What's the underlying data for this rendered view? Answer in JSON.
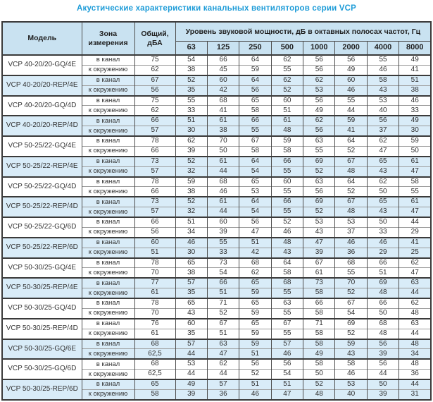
{
  "title": "Акустические характеристики канальных вентиляторов  серии VCP",
  "colors": {
    "accent_title": "#1e9cd8",
    "header_bg": "#c9e2f1",
    "stripe_bg": "#d9ecf8",
    "border_dark": "#3a3a3a"
  },
  "table": {
    "headers": {
      "model": "Модель",
      "zone": "Зона измерения",
      "total": "Общий, дБА",
      "level_span": "Уровень звуковой мощности, дБ в октавных полосах частот, Гц",
      "frequencies": [
        "63",
        "125",
        "250",
        "500",
        "1000",
        "2000",
        "4000",
        "8000"
      ]
    },
    "zone_labels": {
      "duct": "в канал",
      "ambient": "к окружению"
    },
    "models": [
      {
        "name": "VCP 40-20/20-GQ/4E",
        "highlight": false,
        "rows": [
          {
            "zone": "в канал",
            "total": "75",
            "values": [
              "54",
              "66",
              "64",
              "62",
              "56",
              "56",
              "55",
              "49"
            ]
          },
          {
            "zone": "к окружению",
            "total": "62",
            "values": [
              "38",
              "45",
              "59",
              "55",
              "56",
              "49",
              "46",
              "41"
            ]
          }
        ]
      },
      {
        "name": "VCP 40-20/20-REP/4E",
        "highlight": true,
        "rows": [
          {
            "zone": "в канал",
            "total": "67",
            "values": [
              "52",
              "60",
              "64",
              "62",
              "62",
              "60",
              "58",
              "51"
            ]
          },
          {
            "zone": "к окружению",
            "total": "56",
            "values": [
              "35",
              "42",
              "56",
              "52",
              "53",
              "46",
              "43",
              "38"
            ]
          }
        ]
      },
      {
        "name": "VCP 40-20/20-GQ/4D",
        "highlight": false,
        "rows": [
          {
            "zone": "в канал",
            "total": "75",
            "values": [
              "55",
              "68",
              "65",
              "60",
              "56",
              "55",
              "53",
              "46"
            ]
          },
          {
            "zone": "к окружению",
            "total": "62",
            "values": [
              "33",
              "41",
              "58",
              "51",
              "49",
              "44",
              "40",
              "33"
            ]
          }
        ]
      },
      {
        "name": "VCP 40-20/20-REP/4D",
        "highlight": true,
        "rows": [
          {
            "zone": "в канал",
            "total": "66",
            "values": [
              "51",
              "61",
              "66",
              "61",
              "62",
              "59",
              "56",
              "49"
            ]
          },
          {
            "zone": "к окружению",
            "total": "57",
            "values": [
              "30",
              "38",
              "55",
              "48",
              "56",
              "41",
              "37",
              "30"
            ]
          }
        ]
      },
      {
        "name": "VCP 50-25/22-GQ/4E",
        "highlight": false,
        "rows": [
          {
            "zone": "в канал",
            "total": "78",
            "values": [
              "62",
              "70",
              "67",
              "59",
              "63",
              "64",
              "62",
              "59"
            ]
          },
          {
            "zone": "к окружению",
            "total": "66",
            "values": [
              "39",
              "50",
              "58",
              "58",
              "55",
              "52",
              "47",
              "50"
            ]
          }
        ]
      },
      {
        "name": "VCP 50-25/22-REP/4E",
        "highlight": true,
        "rows": [
          {
            "zone": "в канал",
            "total": "73",
            "values": [
              "52",
              "61",
              "64",
              "66",
              "69",
              "67",
              "65",
              "61"
            ]
          },
          {
            "zone": "к окружению",
            "total": "57",
            "values": [
              "32",
              "44",
              "54",
              "55",
              "52",
              "48",
              "43",
              "47"
            ]
          }
        ]
      },
      {
        "name": "VCP 50-25/22-GQ/4D",
        "highlight": false,
        "rows": [
          {
            "zone": "в канал",
            "total": "78",
            "values": [
              "59",
              "68",
              "65",
              "60",
              "63",
              "64",
              "62",
              "58"
            ]
          },
          {
            "zone": "к окружению",
            "total": "66",
            "values": [
              "38",
              "46",
              "53",
              "55",
              "56",
              "52",
              "50",
              "55"
            ]
          }
        ]
      },
      {
        "name": "VCP 50-25/22-REP/4D",
        "highlight": true,
        "rows": [
          {
            "zone": "в канал",
            "total": "73",
            "values": [
              "52",
              "61",
              "64",
              "66",
              "69",
              "67",
              "65",
              "61"
            ]
          },
          {
            "zone": "к окружению",
            "total": "57",
            "values": [
              "32",
              "44",
              "54",
              "55",
              "52",
              "48",
              "43",
              "47"
            ]
          }
        ]
      },
      {
        "name": "VCP 50-25/22-GQ/6D",
        "highlight": false,
        "rows": [
          {
            "zone": "в канал",
            "total": "66",
            "values": [
              "51",
              "60",
              "56",
              "52",
              "53",
              "53",
              "50",
              "44"
            ]
          },
          {
            "zone": "к окружению",
            "total": "56",
            "values": [
              "34",
              "39",
              "47",
              "46",
              "43",
              "37",
              "33",
              "29"
            ]
          }
        ]
      },
      {
        "name": "VCP 50-25/22-REP/6D",
        "highlight": true,
        "rows": [
          {
            "zone": "в канал",
            "total": "60",
            "values": [
              "46",
              "55",
              "51",
              "48",
              "47",
              "46",
              "46",
              "41"
            ]
          },
          {
            "zone": "к окружению",
            "total": "51",
            "values": [
              "30",
              "33",
              "42",
              "43",
              "39",
              "36",
              "29",
              "25"
            ]
          }
        ]
      },
      {
        "name": "VCP 50-30/25-GQ/4E",
        "highlight": false,
        "rows": [
          {
            "zone": "в канал",
            "total": "78",
            "values": [
              "65",
              "73",
              "68",
              "64",
              "67",
              "68",
              "66",
              "62"
            ]
          },
          {
            "zone": "к окружению",
            "total": "70",
            "values": [
              "38",
              "54",
              "62",
              "58",
              "61",
              "55",
              "51",
              "47"
            ]
          }
        ]
      },
      {
        "name": "VCP 50-30/25-REP/4E",
        "highlight": true,
        "rows": [
          {
            "zone": "в канал",
            "total": "77",
            "values": [
              "57",
              "66",
              "65",
              "68",
              "73",
              "70",
              "69",
              "63"
            ]
          },
          {
            "zone": "к окружению",
            "total": "61",
            "values": [
              "35",
              "51",
              "59",
              "55",
              "58",
              "52",
              "48",
              "44"
            ]
          }
        ]
      },
      {
        "name": "VCP 50-30/25-GQ/4D",
        "highlight": false,
        "rows": [
          {
            "zone": "в канал",
            "total": "78",
            "values": [
              "65",
              "71",
              "65",
              "63",
              "66",
              "67",
              "66",
              "62"
            ]
          },
          {
            "zone": "к окружению",
            "total": "70",
            "values": [
              "43",
              "52",
              "59",
              "55",
              "58",
              "54",
              "50",
              "48"
            ]
          }
        ]
      },
      {
        "name": "VCP 50-30/25-REP/4D",
        "highlight": false,
        "rows": [
          {
            "zone": "в канал",
            "total": "76",
            "values": [
              "60",
              "67",
              "65",
              "67",
              "71",
              "69",
              "68",
              "63"
            ]
          },
          {
            "zone": "к окружению",
            "total": "61",
            "values": [
              "35",
              "51",
              "59",
              "55",
              "58",
              "52",
              "48",
              "44"
            ]
          }
        ]
      },
      {
        "name": "VCP 50-30/25-GQ/6E",
        "highlight": true,
        "rows": [
          {
            "zone": "в канал",
            "total": "68",
            "values": [
              "57",
              "63",
              "59",
              "57",
              "58",
              "59",
              "56",
              "48"
            ]
          },
          {
            "zone": "к окружению",
            "total": "62,5",
            "values": [
              "44",
              "47",
              "51",
              "46",
              "49",
              "43",
              "39",
              "34"
            ]
          }
        ]
      },
      {
        "name": "VCP 50-30/25-GQ/6D",
        "highlight": false,
        "rows": [
          {
            "zone": "в канал",
            "total": "68",
            "values": [
              "53",
              "62",
              "56",
              "56",
              "58",
              "58",
              "56",
              "48"
            ]
          },
          {
            "zone": "к окружению",
            "total": "62,5",
            "values": [
              "44",
              "44",
              "52",
              "54",
              "50",
              "46",
              "44",
              "36"
            ]
          }
        ]
      },
      {
        "name": "VCP 50-30/25-REP/6D",
        "highlight": true,
        "rows": [
          {
            "zone": "в канал",
            "total": "65",
            "values": [
              "49",
              "57",
              "51",
              "51",
              "52",
              "53",
              "50",
              "44"
            ]
          },
          {
            "zone": "к окружению",
            "total": "58",
            "values": [
              "39",
              "36",
              "46",
              "47",
              "48",
              "40",
              "39",
              "31"
            ]
          }
        ]
      }
    ]
  }
}
